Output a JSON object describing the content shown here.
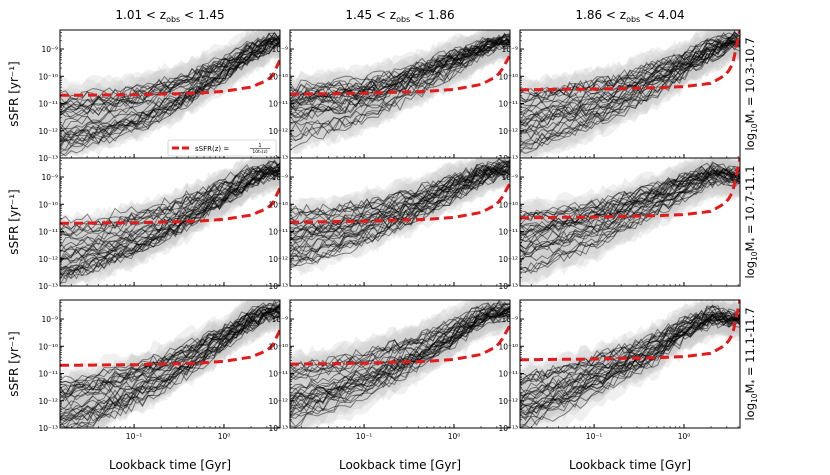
{
  "figure": {
    "column_titles": [
      {
        "pre": "1.01 < z",
        "sub": "obs",
        "post": " < 1.45"
      },
      {
        "pre": "1.45 < z",
        "sub": "obs",
        "post": " < 1.86"
      },
      {
        "pre": "1.86 < z",
        "sub": "obs",
        "post": " < 4.04"
      }
    ],
    "row_labels": [
      {
        "pre": "log",
        "sub1": "10",
        "mid": "M",
        "sub2": "*",
        "post": " = 10.3-10.7"
      },
      {
        "pre": "log",
        "sub1": "10",
        "mid": "M",
        "sub2": "*",
        "post": " = 10.7-11.1"
      },
      {
        "pre": "log",
        "sub1": "10",
        "mid": "M",
        "sub2": "*",
        "post": " = 11.1-11.7"
      }
    ],
    "ylabel": "sSFR [yr⁻¹]",
    "xlabel": "Lookback time [Gyr]",
    "legend": {
      "prefix": "sSFR(z) = ",
      "num": "1",
      "den": "10tₕ(z)",
      "placement": "lower-right of top-left panel"
    },
    "colors": {
      "tracks": "#000000",
      "bands": "#c8c8c8",
      "reference": "#e41a1c"
    }
  },
  "chart_data": {
    "type": "line",
    "grid": "3x3 small multiples",
    "x_scale": "log",
    "y_scale": "log",
    "xlim": [
      0.015,
      4.2
    ],
    "ylim": [
      1e-13,
      5e-09
    ],
    "x_ticks": [
      {
        "value": 0.1,
        "label": "10⁻¹"
      },
      {
        "value": 1,
        "label": "10⁰"
      }
    ],
    "y_ticks": [
      {
        "value": 1e-09,
        "label": "10⁻⁹"
      },
      {
        "value": 1e-10,
        "label": "10⁻¹⁰"
      },
      {
        "value": 1e-11,
        "label": "10⁻¹¹"
      },
      {
        "value": 1e-12,
        "label": "10⁻¹²"
      },
      {
        "value": 1e-13,
        "label": "10⁻¹³"
      }
    ],
    "reference_curve": {
      "name": "sSFR(z) = 1/(10 t_H(z))",
      "x": [
        0.015,
        0.1,
        0.5,
        1.0,
        2.0,
        3.0,
        3.5,
        4.2
      ],
      "y_by_column": [
        [
          2e-11,
          2.1e-11,
          2.4e-11,
          2.8e-11,
          4e-11,
          7e-11,
          1.1e-10,
          4e-10
        ],
        [
          2.2e-11,
          2.4e-11,
          2.8e-11,
          3.3e-11,
          5e-11,
          1e-10,
          2e-10,
          6e-10
        ],
        [
          3.2e-11,
          3.4e-11,
          3.8e-11,
          4.2e-11,
          5.5e-11,
          1.2e-10,
          3e-10,
          5e-09
        ]
      ]
    },
    "track_summary": {
      "note": "Dozens of individual galaxy sSFR histories per panel with grey uncertainty bands; sSFR rises toward high lookback times, converging near 1e-9 to 3e-9 yr^-1.",
      "x": [
        0.015,
        0.05,
        0.15,
        0.4,
        1.0,
        2.0,
        3.5
      ],
      "median_by_panel": [
        [
          2e-12,
          4e-12,
          1e-11,
          4e-11,
          2e-10,
          8e-10,
          2e-09
        ],
        [
          4e-12,
          8e-12,
          2e-11,
          8e-11,
          3e-10,
          9e-10,
          2e-09
        ],
        [
          2e-12,
          5e-12,
          1.5e-11,
          6e-11,
          2.5e-10,
          9e-10,
          2e-09
        ],
        [
          2e-12,
          5e-12,
          1.5e-11,
          6e-11,
          3e-10,
          1e-09,
          2e-09
        ],
        [
          5e-12,
          1e-11,
          3e-11,
          1e-10,
          4e-10,
          1.2e-09,
          2e-09
        ],
        [
          3e-12,
          8e-12,
          2.5e-11,
          1e-10,
          4e-10,
          1.2e-09,
          1e-09
        ],
        [
          5e-13,
          1.5e-12,
          6e-12,
          3e-11,
          2e-10,
          9e-10,
          2e-09
        ],
        [
          1.5e-12,
          4e-12,
          1.5e-11,
          6e-11,
          3e-10,
          1.2e-09,
          2e-09
        ],
        [
          8e-13,
          3e-12,
          1.5e-11,
          6e-11,
          4e-10,
          1.2e-09,
          1e-09
        ]
      ]
    }
  }
}
